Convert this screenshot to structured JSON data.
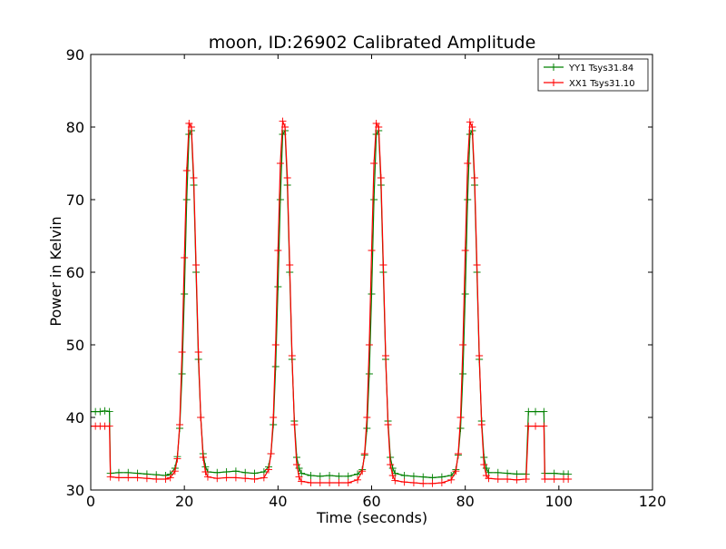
{
  "chart_data": {
    "type": "line",
    "title": "moon, ID:26902 Calibrated Amplitude",
    "xlabel": "Time (seconds)",
    "ylabel": "Power in Kelvin",
    "xlim": [
      0,
      120
    ],
    "ylim": [
      30,
      90
    ],
    "xticks": [
      0,
      20,
      40,
      60,
      80,
      100,
      120
    ],
    "yticks": [
      30,
      40,
      50,
      60,
      70,
      80,
      90
    ],
    "grid": false,
    "legend_position": "top-right",
    "markers": "plus",
    "series": [
      {
        "name": "YY1 Tsys31.84",
        "color": "#008000",
        "points": [
          [
            0,
            40.8
          ],
          [
            1,
            40.8
          ],
          [
            2,
            40.8
          ],
          [
            3,
            40.9
          ],
          [
            4,
            40.8
          ],
          [
            4.2,
            32.3
          ],
          [
            6,
            32.4
          ],
          [
            8,
            32.4
          ],
          [
            10,
            32.3
          ],
          [
            12,
            32.2
          ],
          [
            14,
            32.1
          ],
          [
            16,
            32.0
          ],
          [
            17,
            32.2
          ],
          [
            18,
            33.0
          ],
          [
            18.5,
            34.6
          ],
          [
            19,
            38.5
          ],
          [
            19.5,
            46.0
          ],
          [
            20,
            57.0
          ],
          [
            20.5,
            70.0
          ],
          [
            21,
            79.0
          ],
          [
            21.5,
            79.5
          ],
          [
            22,
            72.0
          ],
          [
            22.5,
            60.0
          ],
          [
            23,
            48.0
          ],
          [
            23.5,
            40.0
          ],
          [
            24,
            35.0
          ],
          [
            24.5,
            33.2
          ],
          [
            25,
            32.5
          ],
          [
            27,
            32.4
          ],
          [
            29,
            32.5
          ],
          [
            31,
            32.6
          ],
          [
            33,
            32.4
          ],
          [
            35,
            32.3
          ],
          [
            37,
            32.5
          ],
          [
            38,
            33.2
          ],
          [
            38.5,
            35.0
          ],
          [
            39,
            39.0
          ],
          [
            39.5,
            47.0
          ],
          [
            40,
            58.0
          ],
          [
            40.5,
            70.0
          ],
          [
            41,
            79.0
          ],
          [
            41.5,
            79.5
          ],
          [
            42,
            72.0
          ],
          [
            42.5,
            60.0
          ],
          [
            43,
            48.0
          ],
          [
            43.5,
            39.5
          ],
          [
            44,
            34.5
          ],
          [
            44.5,
            33.0
          ],
          [
            45,
            32.3
          ],
          [
            47,
            32.0
          ],
          [
            49,
            31.9
          ],
          [
            51,
            32.0
          ],
          [
            53,
            31.9
          ],
          [
            55,
            31.9
          ],
          [
            57,
            32.2
          ],
          [
            58,
            32.8
          ],
          [
            58.5,
            34.8
          ],
          [
            59,
            38.5
          ],
          [
            59.5,
            46.0
          ],
          [
            60,
            57.0
          ],
          [
            60.5,
            70.0
          ],
          [
            61,
            79.0
          ],
          [
            61.5,
            79.5
          ],
          [
            62,
            72.0
          ],
          [
            62.5,
            60.0
          ],
          [
            63,
            48.0
          ],
          [
            63.5,
            39.5
          ],
          [
            64,
            34.5
          ],
          [
            64.5,
            33.0
          ],
          [
            65,
            32.3
          ],
          [
            67,
            32.0
          ],
          [
            69,
            31.9
          ],
          [
            71,
            31.8
          ],
          [
            73,
            31.7
          ],
          [
            75,
            31.8
          ],
          [
            77,
            32.0
          ],
          [
            78,
            32.8
          ],
          [
            78.5,
            34.8
          ],
          [
            79,
            38.5
          ],
          [
            79.5,
            46.0
          ],
          [
            80,
            57.0
          ],
          [
            80.5,
            70.0
          ],
          [
            81,
            79.0
          ],
          [
            81.5,
            79.5
          ],
          [
            82,
            72.0
          ],
          [
            82.5,
            60.0
          ],
          [
            83,
            48.0
          ],
          [
            83.5,
            39.5
          ],
          [
            84,
            34.5
          ],
          [
            84.5,
            33.0
          ],
          [
            85,
            32.4
          ],
          [
            87,
            32.4
          ],
          [
            89,
            32.3
          ],
          [
            91,
            32.2
          ],
          [
            93,
            32.2
          ],
          [
            93.5,
            40.8
          ],
          [
            95,
            40.8
          ],
          [
            96.8,
            40.8
          ],
          [
            97,
            32.3
          ],
          [
            99,
            32.3
          ],
          [
            101,
            32.2
          ],
          [
            102,
            32.2
          ]
        ]
      },
      {
        "name": "XX1 Tsys31.10",
        "color": "#ff0000",
        "points": [
          [
            0,
            38.8
          ],
          [
            1,
            38.8
          ],
          [
            2,
            38.8
          ],
          [
            3,
            38.8
          ],
          [
            4,
            38.8
          ],
          [
            4.2,
            31.8
          ],
          [
            6,
            31.7
          ],
          [
            8,
            31.7
          ],
          [
            10,
            31.7
          ],
          [
            12,
            31.6
          ],
          [
            14,
            31.5
          ],
          [
            16,
            31.5
          ],
          [
            17,
            31.7
          ],
          [
            18,
            32.6
          ],
          [
            18.5,
            34.3
          ],
          [
            19,
            39.0
          ],
          [
            19.5,
            49.0
          ],
          [
            20,
            62.0
          ],
          [
            20.5,
            74.0
          ],
          [
            21,
            80.5
          ],
          [
            21.5,
            80.0
          ],
          [
            22,
            73.0
          ],
          [
            22.5,
            61.0
          ],
          [
            23,
            49.0
          ],
          [
            23.5,
            40.0
          ],
          [
            24,
            34.5
          ],
          [
            24.5,
            32.5
          ],
          [
            25,
            31.8
          ],
          [
            27,
            31.6
          ],
          [
            29,
            31.7
          ],
          [
            31,
            31.7
          ],
          [
            33,
            31.6
          ],
          [
            35,
            31.5
          ],
          [
            37,
            31.7
          ],
          [
            38,
            32.8
          ],
          [
            38.5,
            35.0
          ],
          [
            39,
            40.0
          ],
          [
            39.5,
            50.0
          ],
          [
            40,
            63.0
          ],
          [
            40.5,
            75.0
          ],
          [
            41,
            80.8
          ],
          [
            41.5,
            80.0
          ],
          [
            42,
            73.0
          ],
          [
            42.5,
            61.0
          ],
          [
            43,
            48.5
          ],
          [
            43.5,
            39.0
          ],
          [
            44,
            33.5
          ],
          [
            44.5,
            31.8
          ],
          [
            45,
            31.2
          ],
          [
            47,
            31.0
          ],
          [
            49,
            31.0
          ],
          [
            51,
            31.0
          ],
          [
            53,
            31.0
          ],
          [
            55,
            31.0
          ],
          [
            57,
            31.4
          ],
          [
            58,
            32.6
          ],
          [
            58.5,
            35.0
          ],
          [
            59,
            40.0
          ],
          [
            59.5,
            50.0
          ],
          [
            60,
            63.0
          ],
          [
            60.5,
            75.0
          ],
          [
            61,
            80.5
          ],
          [
            61.5,
            80.0
          ],
          [
            62,
            73.0
          ],
          [
            62.5,
            61.0
          ],
          [
            63,
            48.5
          ],
          [
            63.5,
            39.0
          ],
          [
            64,
            33.5
          ],
          [
            64.5,
            32.0
          ],
          [
            65,
            31.3
          ],
          [
            67,
            31.1
          ],
          [
            69,
            31.0
          ],
          [
            71,
            30.9
          ],
          [
            73,
            30.9
          ],
          [
            75,
            31.0
          ],
          [
            77,
            31.4
          ],
          [
            78,
            32.6
          ],
          [
            78.5,
            35.0
          ],
          [
            79,
            40.0
          ],
          [
            79.5,
            50.0
          ],
          [
            80,
            63.0
          ],
          [
            80.5,
            75.0
          ],
          [
            81,
            80.7
          ],
          [
            81.5,
            80.0
          ],
          [
            82,
            73.0
          ],
          [
            82.5,
            61.0
          ],
          [
            83,
            48.5
          ],
          [
            83.5,
            39.0
          ],
          [
            84,
            33.5
          ],
          [
            84.5,
            32.0
          ],
          [
            85,
            31.6
          ],
          [
            87,
            31.5
          ],
          [
            89,
            31.5
          ],
          [
            91,
            31.4
          ],
          [
            93,
            31.5
          ],
          [
            93.5,
            38.8
          ],
          [
            95,
            38.8
          ],
          [
            96.8,
            38.8
          ],
          [
            97,
            31.5
          ],
          [
            99,
            31.5
          ],
          [
            101,
            31.5
          ],
          [
            102,
            31.5
          ]
        ]
      }
    ]
  }
}
